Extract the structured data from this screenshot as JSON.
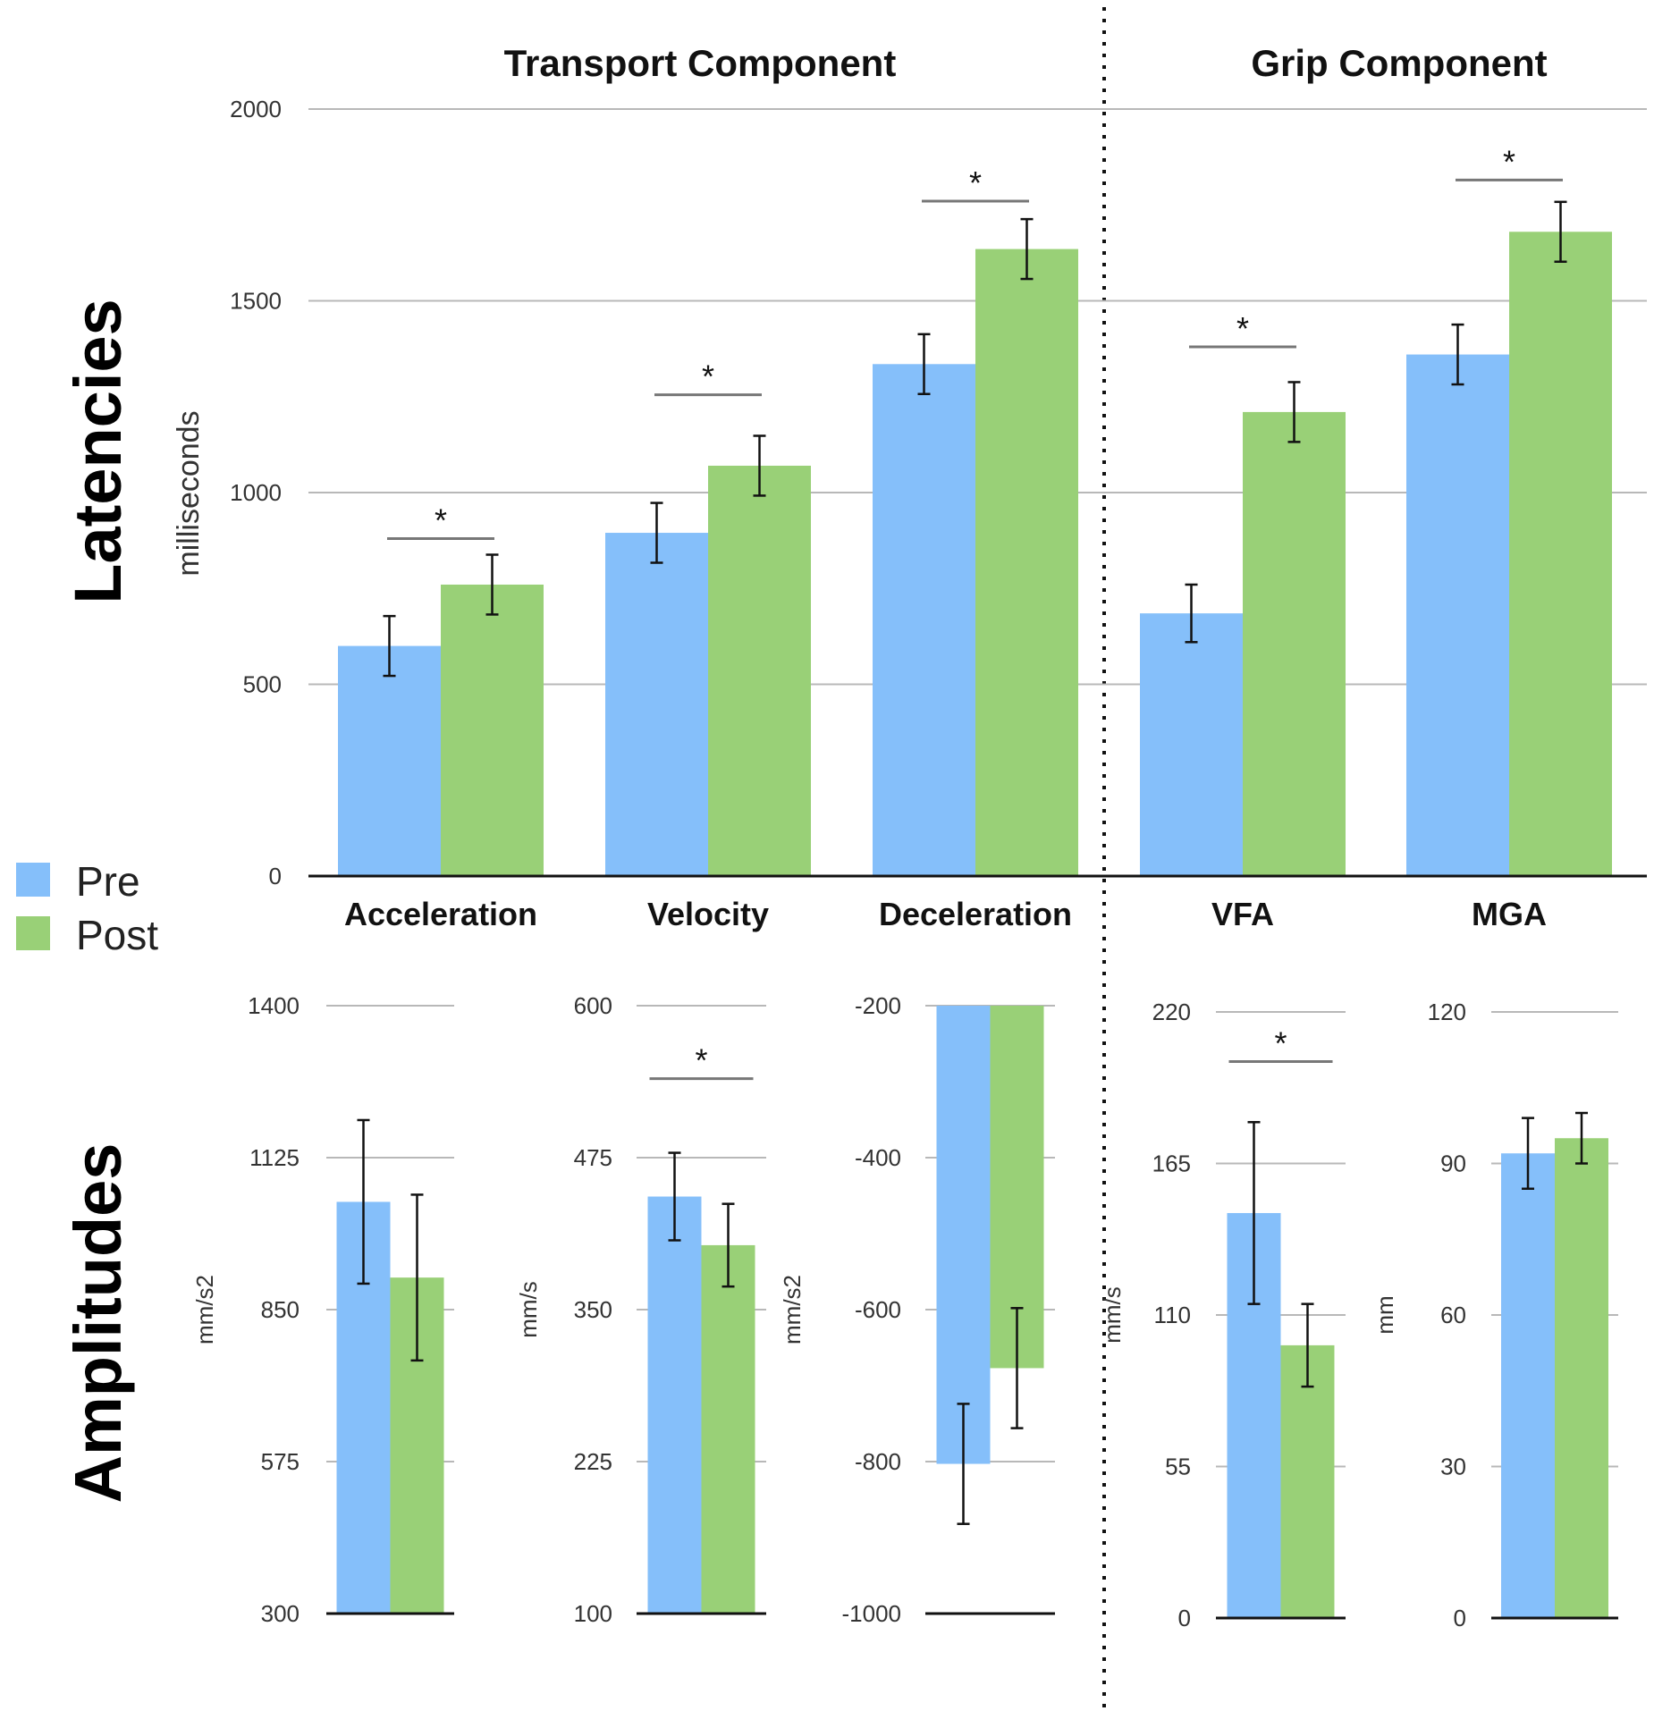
{
  "colors": {
    "pre": "#85bffa",
    "post": "#99d077",
    "grid": "#b8b8b8",
    "axis": "#111111",
    "sig": "#777777"
  },
  "sections": {
    "transport": "Transport Component",
    "grip": "Grip Component"
  },
  "legend": {
    "pre": "Pre",
    "post": "Post"
  },
  "row_labels": {
    "latencies": "Latencies",
    "amplitudes": "Amplitudes"
  },
  "chart_data": [
    {
      "type": "bar",
      "title": "Latencies",
      "ylabel": "milliseconds",
      "ylim": [
        0,
        2000
      ],
      "yticks": [
        0,
        500,
        1000,
        1500,
        2000
      ],
      "ytick_labels": [
        "0",
        "500",
        "1000",
        "1500",
        "2000"
      ],
      "categories": [
        "Acceleration",
        "Velocity",
        "Deceleration",
        "VFA",
        "MGA"
      ],
      "series": [
        {
          "name": "Pre",
          "values": [
            600,
            895,
            1335,
            685,
            1360
          ],
          "errors": [
            78,
            78,
            78,
            75,
            78
          ]
        },
        {
          "name": "Post",
          "values": [
            760,
            1070,
            1635,
            1210,
            1680
          ],
          "errors": [
            78,
            78,
            78,
            78,
            78
          ]
        }
      ],
      "significance": [
        {
          "category": "Acceleration",
          "label": "*",
          "y": 880
        },
        {
          "category": "Velocity",
          "label": "*",
          "y": 1255
        },
        {
          "category": "Deceleration",
          "label": "*",
          "y": 1760
        },
        {
          "category": "VFA",
          "label": "*",
          "y": 1380
        },
        {
          "category": "MGA",
          "label": "*",
          "y": 1815
        }
      ],
      "grid": true
    },
    {
      "type": "bar",
      "title": "Amplitudes - Acceleration",
      "ylabel": "mm/s2",
      "ylim": [
        300,
        1400
      ],
      "yticks": [
        300,
        575,
        850,
        1125,
        1400
      ],
      "ytick_labels": [
        "300",
        "575",
        "850",
        "1125",
        "1400"
      ],
      "series": [
        {
          "name": "Pre",
          "value": 1045,
          "error": 148
        },
        {
          "name": "Post",
          "value": 908,
          "error": 150
        }
      ],
      "significance": null
    },
    {
      "type": "bar",
      "title": "Amplitudes - Velocity",
      "ylabel": "mm/s",
      "ylim": [
        100,
        600
      ],
      "yticks": [
        100,
        225,
        350,
        475,
        600
      ],
      "ytick_labels": [
        "100",
        "225",
        "350",
        "475",
        "600"
      ],
      "series": [
        {
          "name": "Pre",
          "value": 443,
          "error": 36
        },
        {
          "name": "Post",
          "value": 403,
          "error": 34
        }
      ],
      "significance": {
        "label": "*",
        "y": 540
      }
    },
    {
      "type": "bar",
      "title": "Amplitudes - Deceleration",
      "ylabel": "mm/s2",
      "ylim": [
        -1000,
        -200
      ],
      "yticks": [
        -1000,
        -800,
        -600,
        -400,
        -200
      ],
      "ytick_labels": [
        "-1000",
        "-800",
        "-600",
        "-400",
        "-200"
      ],
      "series": [
        {
          "name": "Pre",
          "value": -803,
          "error": 79
        },
        {
          "name": "Post",
          "value": -677,
          "error": 79
        }
      ],
      "significance": null
    },
    {
      "type": "bar",
      "title": "Amplitudes - VFA",
      "ylabel": "mm/s",
      "ylim": [
        0,
        220
      ],
      "yticks": [
        0,
        55,
        110,
        165,
        220
      ],
      "ytick_labels": [
        "0",
        "55",
        "110",
        "165",
        "220"
      ],
      "series": [
        {
          "name": "Pre",
          "value": 147,
          "error": 33
        },
        {
          "name": "Post",
          "value": 99,
          "error": 15
        }
      ],
      "significance": {
        "label": "*",
        "y": 202
      }
    },
    {
      "type": "bar",
      "title": "Amplitudes - MGA",
      "ylabel": "mm",
      "ylim": [
        0,
        120
      ],
      "yticks": [
        0,
        30,
        60,
        90,
        120
      ],
      "ytick_labels": [
        "0",
        "30",
        "60",
        "90",
        "120"
      ],
      "series": [
        {
          "name": "Pre",
          "value": 92,
          "error": 7
        },
        {
          "name": "Post",
          "value": 95,
          "error": 5
        }
      ],
      "significance": null
    }
  ]
}
